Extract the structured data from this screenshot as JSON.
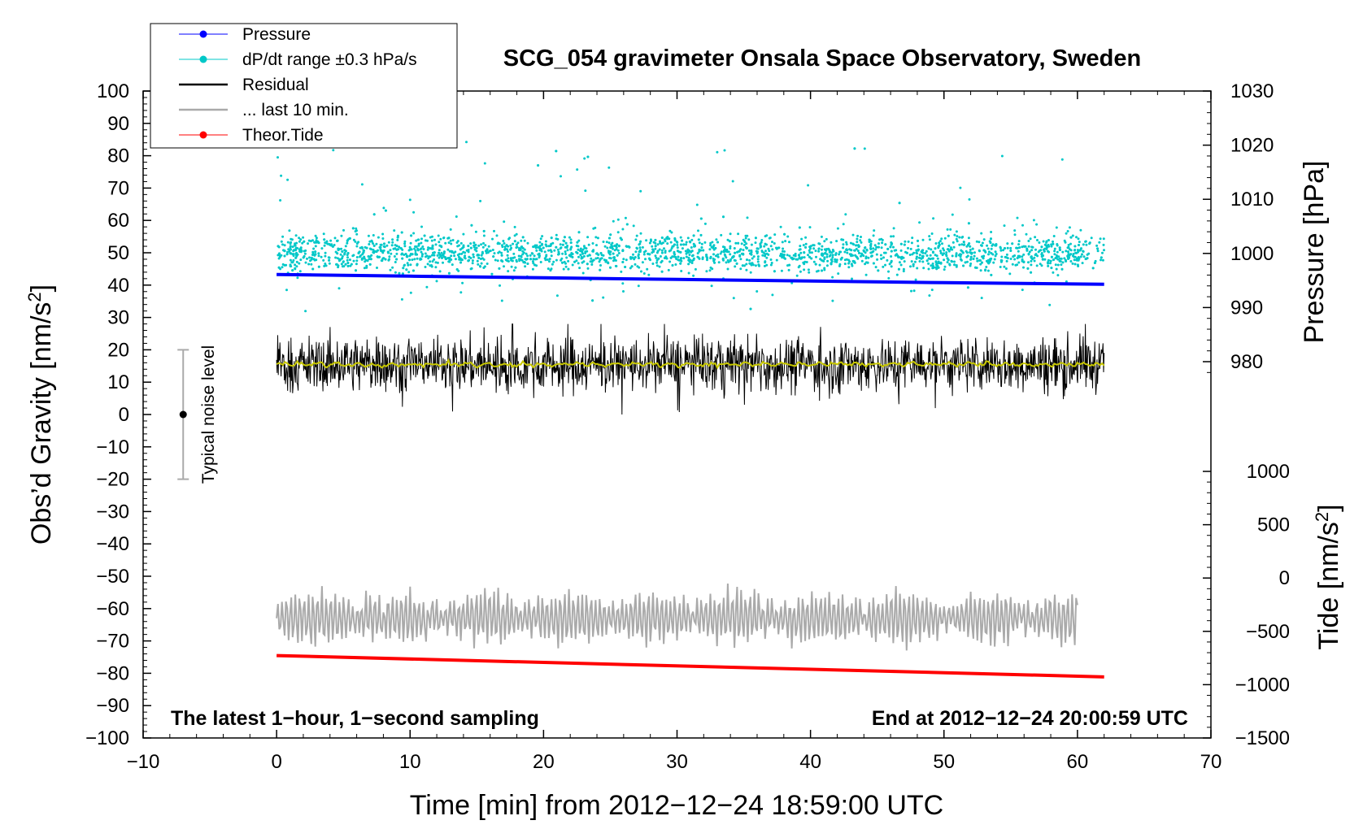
{
  "chart_data": {
    "type": "line",
    "title": "SCG_054 gravimeter Onsala Space Observatory, Sweden",
    "xlabel": "Time [min] from 2012−12−24 18:59:00 UTC",
    "ylabel_left": "Obs'd Gravity [nm/s²]",
    "ylabel_right_top": "Pressure [hPa]",
    "ylabel_right_bottom": "Tide [nm/s²]",
    "xlim": [
      -10,
      70
    ],
    "ylim_left": [
      -100,
      100
    ],
    "ylim_pressure": [
      970,
      1030
    ],
    "ylim_tide": [
      -1500,
      1000
    ],
    "grid": false,
    "x_ticks": [
      "−10",
      "0",
      "10",
      "20",
      "30",
      "40",
      "50",
      "60",
      "70"
    ],
    "x_tick_values": [
      -10,
      0,
      10,
      20,
      30,
      40,
      50,
      60,
      70
    ],
    "y_left_ticks": [
      "100",
      "90",
      "80",
      "70",
      "60",
      "50",
      "40",
      "30",
      "20",
      "10",
      "0",
      "−10",
      "−20",
      "−30",
      "−40",
      "−50",
      "−60",
      "−70",
      "−80",
      "−90",
      "−100"
    ],
    "y_left_tick_values": [
      100,
      90,
      80,
      70,
      60,
      50,
      40,
      30,
      20,
      10,
      0,
      -10,
      -20,
      -30,
      -40,
      -50,
      -60,
      -70,
      -80,
      -90,
      -100
    ],
    "pressure_ticks": [
      "1030",
      "1020",
      "1010",
      "1000",
      "990",
      "980"
    ],
    "pressure_tick_values": [
      1030,
      1020,
      1010,
      1000,
      990,
      980
    ],
    "tide_ticks": [
      "1000",
      "500",
      "0",
      "−500",
      "−1000",
      "−1500"
    ],
    "tide_tick_values": [
      1000,
      500,
      0,
      -500,
      -1000,
      -1500
    ],
    "legend": [
      {
        "label": "Pressure",
        "color": "#0000ff",
        "style": "line-dot"
      },
      {
        "label": "dP/dt range ±0.3 hPa/s",
        "color": "#00c8c8",
        "style": "line-dot"
      },
      {
        "label": "Residual",
        "color": "#000000",
        "style": "line"
      },
      {
        "label": "... last 10 min.",
        "color": "#aaaaaa",
        "style": "line"
      },
      {
        "label": "Theor.Tide",
        "color": "#ff0000",
        "style": "line-dot"
      }
    ],
    "series": [
      {
        "name": "Pressure",
        "color": "#0000ff",
        "x": [
          0,
          10,
          20,
          30,
          40,
          50,
          62
        ],
        "y_hPa": [
          996.1,
          995.8,
          995.5,
          995.2,
          994.9,
          994.6,
          994.3
        ]
      },
      {
        "name": "dP/dt range ±0.3 hPa/s",
        "color": "#00c8c8",
        "x_range": [
          0,
          62
        ],
        "center": 50,
        "spread": 7
      },
      {
        "name": "Residual",
        "color": "#000000",
        "x_range": [
          0,
          62
        ],
        "center": 15.5,
        "spread": 10
      },
      {
        "name": "Residual smoothed",
        "color": "#c8c800",
        "x_range": [
          0,
          62
        ],
        "center": 15.5
      },
      {
        "name": "... last 10 min.",
        "color": "#aaaaaa",
        "x_range": [
          0,
          60
        ],
        "center": -63,
        "amplitude": 8
      },
      {
        "name": "Theor.Tide",
        "color": "#ff0000",
        "x": [
          0,
          62
        ],
        "y_tide": [
          -727,
          -927
        ]
      }
    ],
    "noise_bar": {
      "x": -7,
      "center": 0,
      "low": -20,
      "high": 20,
      "label": "Typical noise level"
    },
    "annotations": {
      "bottom_left": "The latest 1−hour, 1−second sampling",
      "bottom_right": "End at 2012−12−24 20:00:59 UTC"
    }
  }
}
